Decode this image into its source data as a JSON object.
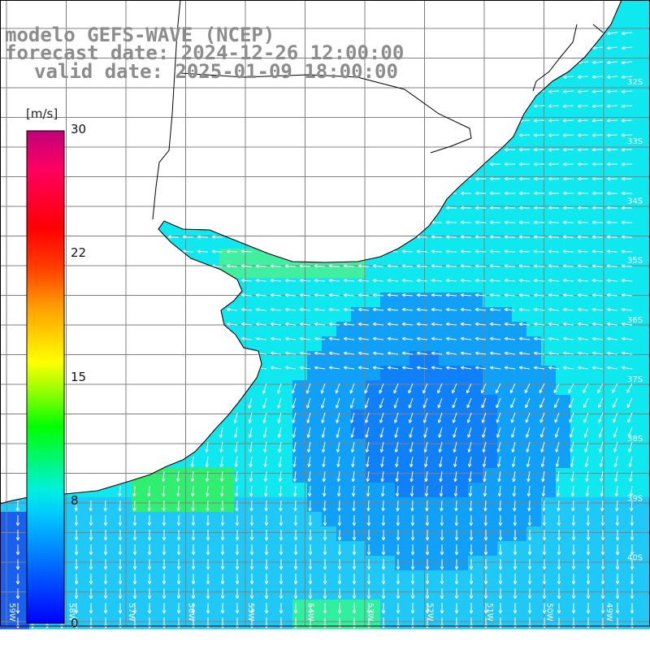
{
  "titles": {
    "line1": "modelo GEFS-WAVE (NCEP)",
    "line2": "forecast date: 2024-12-26 12:00:00",
    "line3": "valid date: 2025-01-09 18:00:00"
  },
  "colorbar": {
    "unit": "[m/s]",
    "ticks": [
      "30",
      "22",
      "15",
      "8",
      "0"
    ],
    "colors": [
      "#0000ff",
      "#0080ff",
      "#00c8ff",
      "#00f0e0",
      "#00ff00",
      "#80ff00",
      "#ffff00",
      "#ffa000",
      "#ff4000",
      "#ff0000",
      "#ff0060",
      "#c0007a"
    ]
  },
  "grid": {
    "lat_labels": [
      "32S",
      "33S",
      "34S",
      "35S",
      "36S",
      "37S",
      "38S",
      "39S",
      "40S"
    ],
    "lon_labels": [
      "59W",
      "58W",
      "57W",
      "56W",
      "55W",
      "54W",
      "53W",
      "52W",
      "51W",
      "50W",
      "49W"
    ]
  },
  "colors": {
    "land": "#ffffff",
    "grid": "#808080",
    "coast": "#000000",
    "title": "#8c8c8c",
    "arrow": "#ffffff"
  }
}
